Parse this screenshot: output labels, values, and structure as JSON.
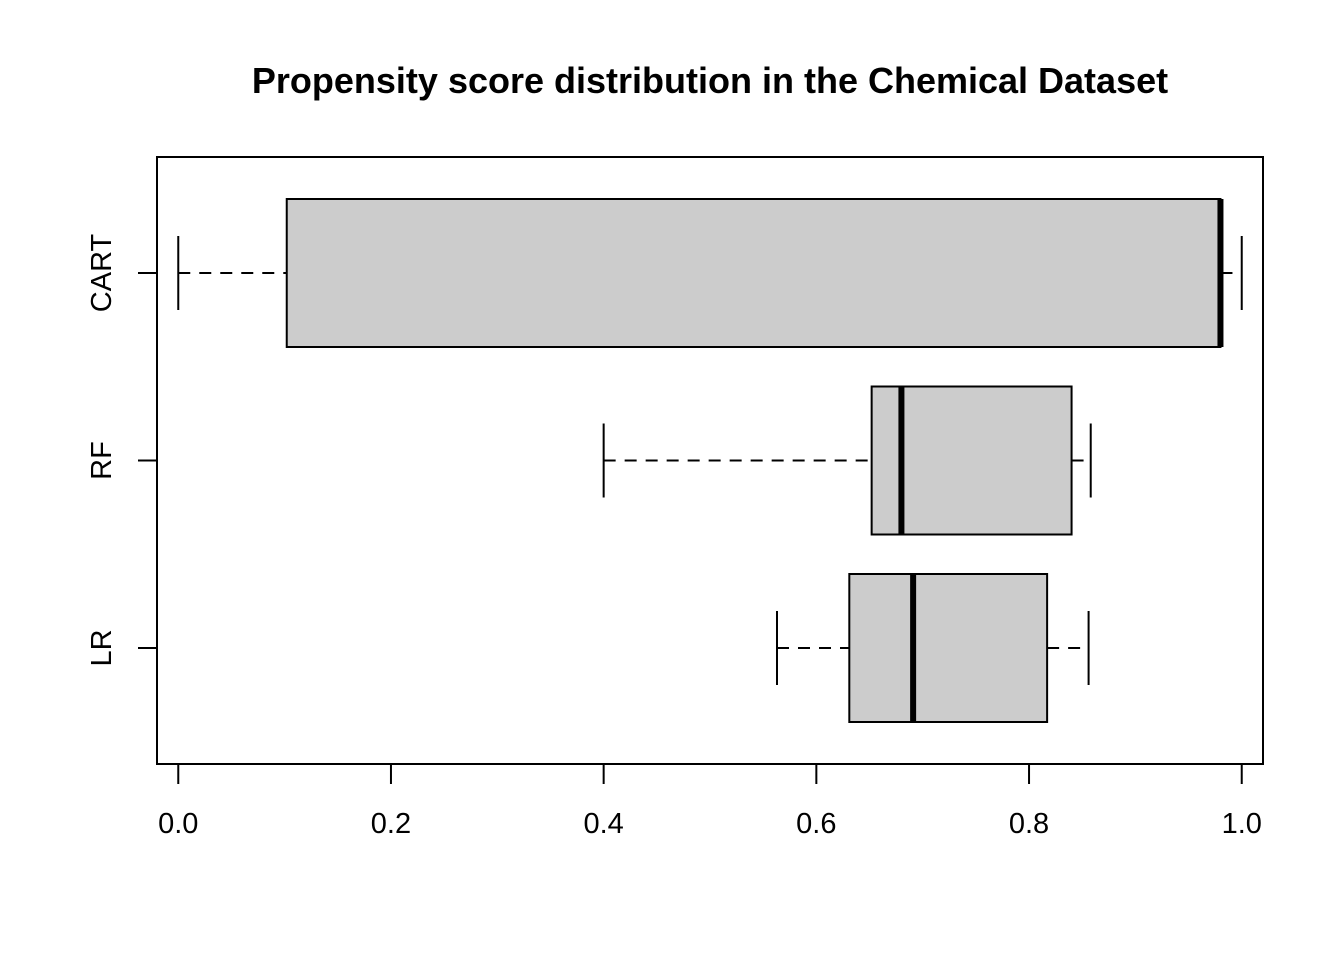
{
  "chart_data": {
    "type": "boxplot",
    "orientation": "horizontal",
    "title": "Propensity score distribution in the Chemical Dataset",
    "xlabel": "",
    "ylabel": "",
    "xlim": [
      -0.02,
      1.02
    ],
    "x_ticks": [
      0.0,
      0.2,
      0.4,
      0.6,
      0.8,
      1.0
    ],
    "x_tick_labels": [
      "0.0",
      "0.2",
      "0.4",
      "0.6",
      "0.8",
      "1.0"
    ],
    "categories": [
      "LR",
      "RF",
      "CART"
    ],
    "boxes": [
      {
        "label": "LR",
        "min": 0.563,
        "q1": 0.631,
        "median": 0.691,
        "q3": 0.817,
        "max": 0.856
      },
      {
        "label": "RF",
        "min": 0.4,
        "q1": 0.652,
        "median": 0.68,
        "q3": 0.84,
        "max": 0.858
      },
      {
        "label": "CART",
        "min": 0.0,
        "q1": 0.102,
        "median": 0.98,
        "q3": 0.98,
        "max": 1.0
      }
    ],
    "box_fill": "#cccccc",
    "grid": false,
    "legend": "none"
  }
}
